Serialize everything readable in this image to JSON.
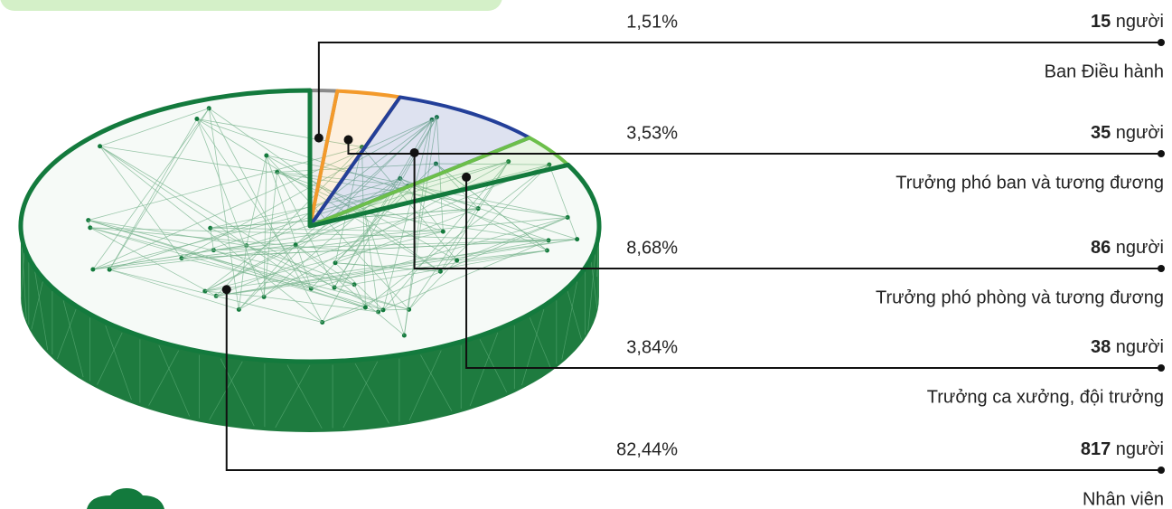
{
  "chart_data": {
    "type": "pie",
    "categories": [
      "Ban Điều hành",
      "Trưởng phó ban và tương đương",
      "Trưởng phó phòng và tương đương",
      "Trưởng ca xưởng, đội trưởng",
      "Nhân viên"
    ],
    "values": [
      1.51,
      3.53,
      8.68,
      3.84,
      82.44
    ],
    "value_labels": [
      "1,51%",
      "3,53%",
      "8,68%",
      "3,84%",
      "82,44%"
    ],
    "counts": [
      15,
      35,
      86,
      38,
      817
    ],
    "count_unit": "người",
    "colors": [
      "#8a8a8a",
      "#f39a2b",
      "#233f99",
      "#6cbf4a",
      "#137a3d"
    ]
  }
}
